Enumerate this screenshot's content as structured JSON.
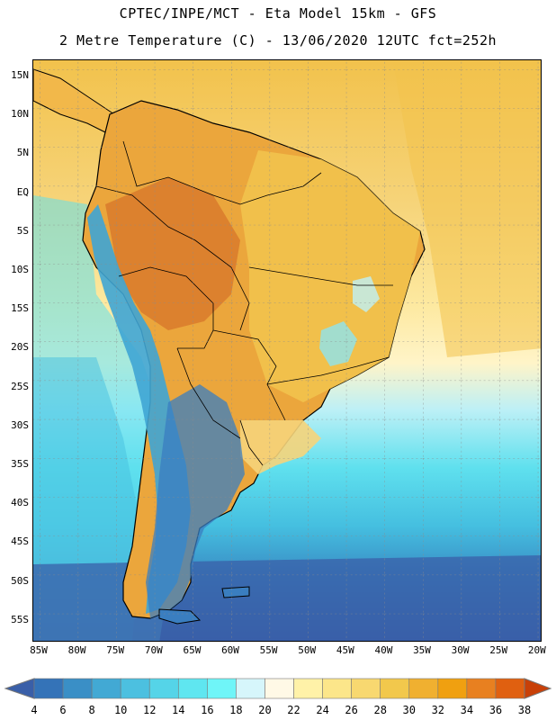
{
  "header": {
    "line1": "CPTEC/INPE/MCT -  Eta Model 15km - GFS",
    "line2": "2 Metre Temperature (C) - 13/06/2020 12UTC fct=252h"
  },
  "axes": {
    "lat_labels": [
      "15N",
      "10N",
      "5N",
      "EQ",
      "5S",
      "10S",
      "15S",
      "20S",
      "25S",
      "30S",
      "35S",
      "40S",
      "45S",
      "50S",
      "55S"
    ],
    "lon_labels": [
      "85W",
      "80W",
      "75W",
      "70W",
      "65W",
      "60W",
      "55W",
      "50W",
      "45W",
      "40W",
      "35W",
      "30W",
      "25W",
      "20W"
    ]
  },
  "colorbar": {
    "labels": [
      "4",
      "6",
      "8",
      "10",
      "12",
      "14",
      "16",
      "18",
      "20",
      "22",
      "24",
      "26",
      "28",
      "30",
      "32",
      "34",
      "36",
      "38"
    ],
    "colors": [
      "#3a5fa8",
      "#3473b8",
      "#3a8fc6",
      "#42a9d4",
      "#4cc0e0",
      "#55d4e8",
      "#5fe6f0",
      "#6ff5f8",
      "#d6f6fb",
      "#fff9e6",
      "#fff2a8",
      "#fce68a",
      "#f8d870",
      "#f2c84c",
      "#f0b030",
      "#f0a010",
      "#e88020",
      "#e06010",
      "#c84008"
    ]
  },
  "palette": {
    "ocean_warm": "#f4d47a",
    "ocean_mild": "#fff2b0",
    "ocean_cool": "#5fe0ee",
    "ocean_cold": "#3a8fc6",
    "ocean_deep": "#3a5fa8",
    "land_hot": "#eba63c",
    "land_warm": "#f2c44e",
    "andes": "#3fa5d4",
    "patagonia": "#3a7ec0"
  }
}
